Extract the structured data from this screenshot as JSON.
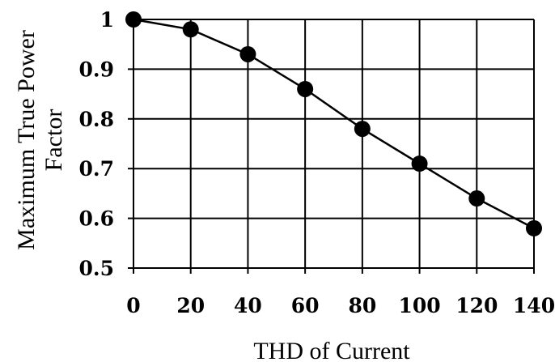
{
  "chart_data": {
    "type": "line",
    "title": "",
    "xlabel": "THD of Current",
    "ylabel_lines": [
      "Maximum True Power",
      "Factor"
    ],
    "x": [
      0,
      20,
      40,
      60,
      80,
      100,
      120,
      140
    ],
    "series": [
      {
        "values": [
          1.0,
          0.98,
          0.93,
          0.86,
          0.78,
          0.71,
          0.64,
          0.58
        ]
      }
    ],
    "xlim": [
      0,
      140
    ],
    "ylim": [
      0.5,
      1.0
    ],
    "xticks": [
      "0",
      "20",
      "40",
      "60",
      "80",
      "100",
      "120",
      "140"
    ],
    "yticks": [
      "0.5",
      "0.6",
      "0.7",
      "0.8",
      "0.9",
      "1"
    ],
    "grid": true,
    "colors": {
      "line": "#000000",
      "marker": "#000000",
      "grid": "#000000"
    }
  }
}
